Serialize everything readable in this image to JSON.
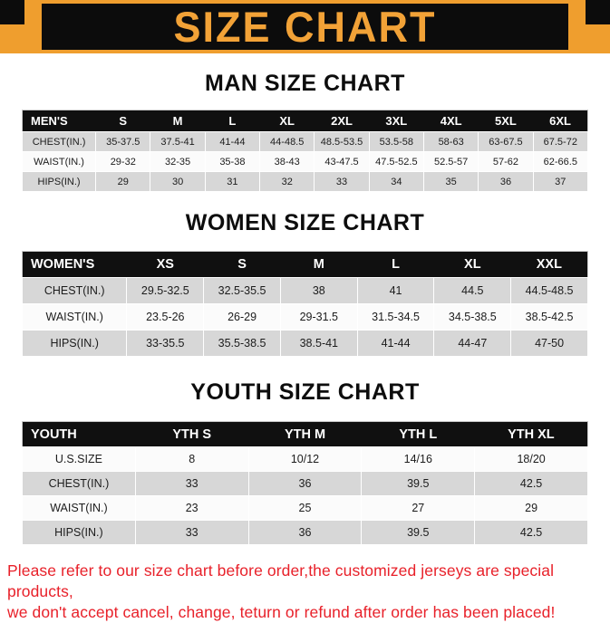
{
  "banner": {
    "title": "SIZE CHART"
  },
  "sections": [
    {
      "id": "mens",
      "heading": "MAN SIZE CHART",
      "table": {
        "header": [
          "MEN'S",
          "S",
          "M",
          "L",
          "XL",
          "2XL",
          "3XL",
          "4XL",
          "5XL",
          "6XL"
        ],
        "rows": [
          [
            "CHEST(IN.)",
            "35-37.5",
            "37.5-41",
            "41-44",
            "44-48.5",
            "48.5-53.5",
            "53.5-58",
            "58-63",
            "63-67.5",
            "67.5-72"
          ],
          [
            "WAIST(IN.)",
            "29-32",
            "32-35",
            "35-38",
            "38-43",
            "43-47.5",
            "47.5-52.5",
            "52.5-57",
            "57-62",
            "62-66.5"
          ],
          [
            "HIPS(IN.)",
            "29",
            "30",
            "31",
            "32",
            "33",
            "34",
            "35",
            "36",
            "37"
          ]
        ]
      }
    },
    {
      "id": "womens",
      "heading": "WOMEN SIZE CHART",
      "table": {
        "header": [
          "WOMEN'S",
          "XS",
          "S",
          "M",
          "L",
          "XL",
          "XXL"
        ],
        "rows": [
          [
            "CHEST(IN.)",
            "29.5-32.5",
            "32.5-35.5",
            "38",
            "41",
            "44.5",
            "44.5-48.5"
          ],
          [
            "WAIST(IN.)",
            "23.5-26",
            "26-29",
            "29-31.5",
            "31.5-34.5",
            "34.5-38.5",
            "38.5-42.5"
          ],
          [
            "HIPS(IN.)",
            "33-35.5",
            "35.5-38.5",
            "38.5-41",
            "41-44",
            "44-47",
            "47-50"
          ]
        ]
      }
    },
    {
      "id": "youth",
      "heading": "YOUTH SIZE CHART",
      "table": {
        "header": [
          "YOUTH",
          "YTH S",
          "YTH M",
          "YTH L",
          "YTH XL"
        ],
        "rows": [
          [
            "U.S.SIZE",
            "8",
            "10/12",
            "14/16",
            "18/20"
          ],
          [
            "CHEST(IN.)",
            "33",
            "36",
            "39.5",
            "42.5"
          ],
          [
            "WAIST(IN.)",
            "23",
            "25",
            "27",
            "29"
          ],
          [
            "HIPS(IN.)",
            "33",
            "36",
            "39.5",
            "42.5"
          ]
        ]
      }
    }
  ],
  "footer": {
    "line1": "Please refer to our size chart before order,the customized jerseys are special products,",
    "line2": "we don't accept cancel, change, teturn or refund after order has been placed!"
  },
  "colors": {
    "banner_orange": "#EF9E2E",
    "banner_black": "#0C0C0C",
    "title_orange": "#F2A237",
    "row_gray": "#D7D7D7",
    "row_white": "#FBFBFB",
    "header_black": "#101010",
    "footer_red": "#E8212A"
  }
}
